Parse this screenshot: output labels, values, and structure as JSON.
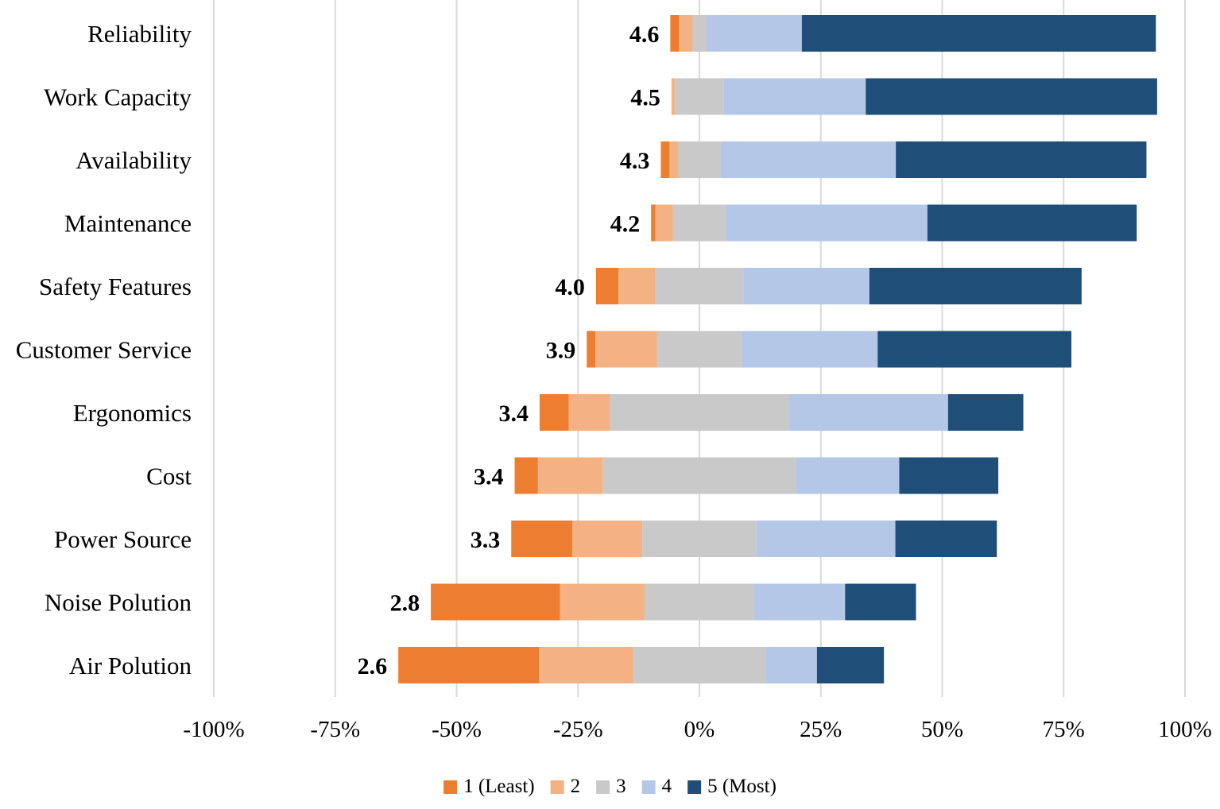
{
  "chart_data": {
    "type": "bar",
    "subtype": "diverging-stacked-horizontal",
    "title": "",
    "xlabel": "",
    "ylabel": "",
    "xlim": [
      -100,
      100
    ],
    "x_ticks": [
      -100,
      -75,
      -50,
      -25,
      0,
      25,
      50,
      75,
      100
    ],
    "x_tick_labels": [
      "-100%",
      "-75%",
      "-50%",
      "-25%",
      "0%",
      "25%",
      "50%",
      "75%",
      "100%"
    ],
    "grid": true,
    "legend_position": "bottom",
    "categories": [
      "Reliability",
      "Work Capacity",
      "Availability",
      "Maintenance",
      "Safety Features",
      "Customer Service",
      "Ergonomics",
      "Cost",
      "Power Source",
      "Noise Polution",
      "Air Polution"
    ],
    "mean_scores": [
      "4.6",
      "4.5",
      "4.3",
      "4.2",
      "4.0",
      "3.9",
      "3.4",
      "3.4",
      "3.3",
      "2.8",
      "2.6"
    ],
    "series": [
      {
        "name": "1 (Least)",
        "color": "#ED7D31",
        "values": [
          1.8,
          0.0,
          1.8,
          0.9,
          4.6,
          1.8,
          6.0,
          4.8,
          12.6,
          26.6,
          29.0
        ]
      },
      {
        "name": "2",
        "color": "#F4B183",
        "values": [
          2.8,
          0.7,
          1.8,
          3.6,
          7.6,
          12.7,
          8.5,
          13.4,
          14.4,
          17.4,
          19.4
        ]
      },
      {
        "name": "3",
        "color": "#C9C9C9",
        "values": [
          2.8,
          10.1,
          8.7,
          10.9,
          18.2,
          17.4,
          36.8,
          39.7,
          23.5,
          22.6,
          27.2
        ]
      },
      {
        "name": "4",
        "color": "#B4C7E7",
        "values": [
          19.7,
          29.2,
          36.1,
          41.5,
          25.9,
          28.0,
          32.8,
          21.3,
          28.6,
          18.7,
          10.6
        ]
      },
      {
        "name": "5 (Most)",
        "color": "#1F4E79",
        "values": [
          72.9,
          60.0,
          51.6,
          43.1,
          43.7,
          39.9,
          15.5,
          20.4,
          20.9,
          14.6,
          13.8
        ]
      }
    ]
  }
}
